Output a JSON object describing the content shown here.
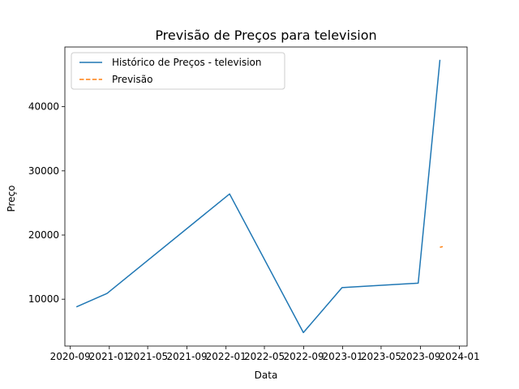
{
  "chart_data": {
    "type": "line",
    "title": "Previsão de Preços para television",
    "xlabel": "Data",
    "ylabel": "Preço",
    "x_ticks": [
      "2020-09",
      "2021-01",
      "2021-05",
      "2021-09",
      "2022-01",
      "2022-05",
      "2022-09",
      "2023-01",
      "2023-05",
      "2023-09",
      "2024-01"
    ],
    "y_ticks": [
      10000,
      20000,
      30000,
      40000
    ],
    "xlim": [
      "2020-08-15",
      "2024-01-25"
    ],
    "ylim": [
      2700,
      49300
    ],
    "legend_position": "top-left",
    "grid": false,
    "series": [
      {
        "name": "Histórico de Preços - television",
        "color": "#1f77b4",
        "style": "solid",
        "x": [
          "2020-09-20",
          "2020-12-25",
          "2022-01-12",
          "2022-08-31",
          "2022-12-30",
          "2023-08-25",
          "2023-11-01"
        ],
        "y": [
          8800,
          10900,
          26400,
          4800,
          11800,
          12500,
          47300
        ]
      },
      {
        "name": "Previsão",
        "color": "#ff7f0e",
        "style": "dashed",
        "x": [
          "2023-11-01",
          "2023-11-10"
        ],
        "y": [
          18100,
          18200
        ]
      }
    ]
  }
}
